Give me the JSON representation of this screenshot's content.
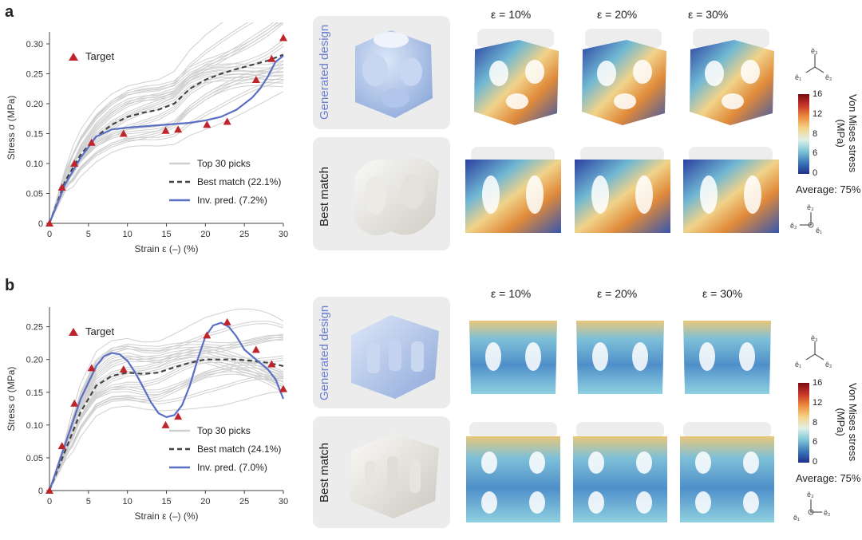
{
  "panels": [
    {
      "label": "a",
      "row_labels": {
        "generated": "Generated design",
        "best": "Best match"
      },
      "eps_labels": [
        "ε = 10%",
        "ε = 20%",
        "ε = 30%"
      ],
      "colorbar": {
        "title_line1": "Von Mises stress",
        "title_line2": "(MPa)",
        "ticks": [
          "16",
          "12",
          "8",
          "6",
          "0"
        ],
        "average": "Average: 75%"
      },
      "axes_labels": {
        "top": [
          "ê₃",
          "ê₁",
          "ê₂"
        ],
        "bottom": [
          "ê₃",
          "ê₂",
          "ê₁"
        ]
      },
      "colors": {
        "gen_tile_accent": "#a7bde6",
        "best_tile_accent": "#e6e2da"
      }
    },
    {
      "label": "b",
      "row_labels": {
        "generated": "Generated design",
        "best": "Best match"
      },
      "eps_labels": [
        "ε = 10%",
        "ε = 20%",
        "ε = 30%"
      ],
      "colorbar": {
        "title_line1": "Von Mises stress",
        "title_line2": "(MPa)",
        "ticks": [
          "16",
          "12",
          "8",
          "6",
          "0"
        ],
        "average": "Average: 75%"
      },
      "axes_labels": {
        "top": [
          "ê₃",
          "ê₁",
          "ê₂"
        ],
        "bottom": [
          "ê₃",
          "ê₁",
          "ê₂"
        ]
      },
      "colors": {
        "gen_tile_accent": "#a7bde6",
        "best_tile_accent": "#e6e2da"
      }
    }
  ],
  "chart_data": [
    {
      "type": "line",
      "panel": "a",
      "xlabel": "Strain ε (–) (%)",
      "ylabel": "Stress σ (MPa)",
      "xlim": [
        0,
        30
      ],
      "ylim": [
        0,
        0.32
      ],
      "xticks": [
        0,
        5,
        10,
        15,
        20,
        25,
        30
      ],
      "xtick_labels": [
        "0",
        "5",
        "10",
        "15",
        "20",
        "25",
        "30"
      ],
      "yticks": [
        0,
        0.05,
        0.1,
        0.15,
        0.2,
        0.25,
        0.3
      ],
      "ytick_labels": [
        "0",
        "0.05",
        "0.10",
        "0.15",
        "0.20",
        "0.25",
        "0.30"
      ],
      "legend": {
        "target": "Target",
        "top": "Top 30 picks",
        "best": "Best match (22.1%)",
        "inv": "Inv. pred. (7.2%)"
      },
      "target": {
        "x": [
          0,
          1.6,
          3.2,
          5.4,
          9.5,
          14.9,
          16.5,
          20.2,
          22.8,
          26.5,
          28.5,
          30
        ],
        "y": [
          0,
          0.06,
          0.1,
          0.135,
          0.15,
          0.155,
          0.157,
          0.165,
          0.17,
          0.24,
          0.275,
          0.31
        ]
      },
      "best_match": {
        "x": [
          0,
          2,
          4,
          6,
          8,
          10,
          12,
          14,
          16,
          18,
          20,
          22,
          24,
          26,
          28,
          30
        ],
        "y": [
          0,
          0.07,
          0.115,
          0.145,
          0.165,
          0.178,
          0.185,
          0.19,
          0.2,
          0.225,
          0.24,
          0.25,
          0.258,
          0.265,
          0.272,
          0.282
        ]
      },
      "inv_pred": {
        "x": [
          0,
          2,
          4,
          6,
          8,
          10,
          12,
          14,
          16,
          18,
          20,
          22,
          24,
          26,
          27,
          28,
          29,
          30
        ],
        "y": [
          0,
          0.065,
          0.11,
          0.145,
          0.157,
          0.16,
          0.162,
          0.164,
          0.166,
          0.168,
          0.172,
          0.178,
          0.19,
          0.21,
          0.225,
          0.245,
          0.27,
          0.28
        ]
      },
      "top_picks_count": 30
    },
    {
      "type": "line",
      "panel": "b",
      "xlabel": "Strain ε (–) (%)",
      "ylabel": "Stress σ (MPa)",
      "xlim": [
        0,
        30
      ],
      "ylim": [
        0,
        0.28
      ],
      "xticks": [
        0,
        5,
        10,
        15,
        20,
        25,
        30
      ],
      "xtick_labels": [
        "0",
        "5",
        "10",
        "15",
        "20",
        "25",
        "30"
      ],
      "yticks": [
        0,
        0.05,
        0.1,
        0.15,
        0.2,
        0.25
      ],
      "ytick_labels": [
        "0",
        "0.05",
        "0.10",
        "0.15",
        "0.20",
        "0.25"
      ],
      "legend": {
        "target": "Target",
        "top": "Top 30 picks",
        "best": "Best match (24.1%)",
        "inv": "Inv. pred. (7.0%)"
      },
      "target": {
        "x": [
          0,
          1.6,
          3.2,
          5.4,
          9.5,
          14.9,
          16.5,
          20.2,
          22.8,
          26.5,
          28.5,
          30
        ],
        "y": [
          0,
          0.068,
          0.133,
          0.187,
          0.185,
          0.1,
          0.113,
          0.237,
          0.257,
          0.215,
          0.193,
          0.155
        ]
      },
      "best_match": {
        "x": [
          0,
          2,
          4,
          6,
          8,
          10,
          12,
          14,
          16,
          18,
          20,
          22,
          24,
          26,
          28,
          30
        ],
        "y": [
          0,
          0.06,
          0.12,
          0.16,
          0.175,
          0.18,
          0.178,
          0.18,
          0.188,
          0.195,
          0.2,
          0.2,
          0.2,
          0.198,
          0.195,
          0.19
        ]
      },
      "inv_pred": {
        "x": [
          0,
          2,
          4,
          6,
          7,
          8,
          9,
          10,
          11,
          12,
          13,
          14,
          15,
          16,
          17,
          18,
          19,
          20,
          21,
          22,
          23,
          24,
          25,
          26,
          27,
          28,
          29,
          30
        ],
        "y": [
          0,
          0.07,
          0.14,
          0.19,
          0.205,
          0.21,
          0.208,
          0.198,
          0.18,
          0.158,
          0.135,
          0.118,
          0.112,
          0.115,
          0.13,
          0.16,
          0.2,
          0.235,
          0.252,
          0.256,
          0.25,
          0.235,
          0.215,
          0.205,
          0.195,
          0.185,
          0.17,
          0.14
        ]
      },
      "top_picks_count": 30
    }
  ]
}
